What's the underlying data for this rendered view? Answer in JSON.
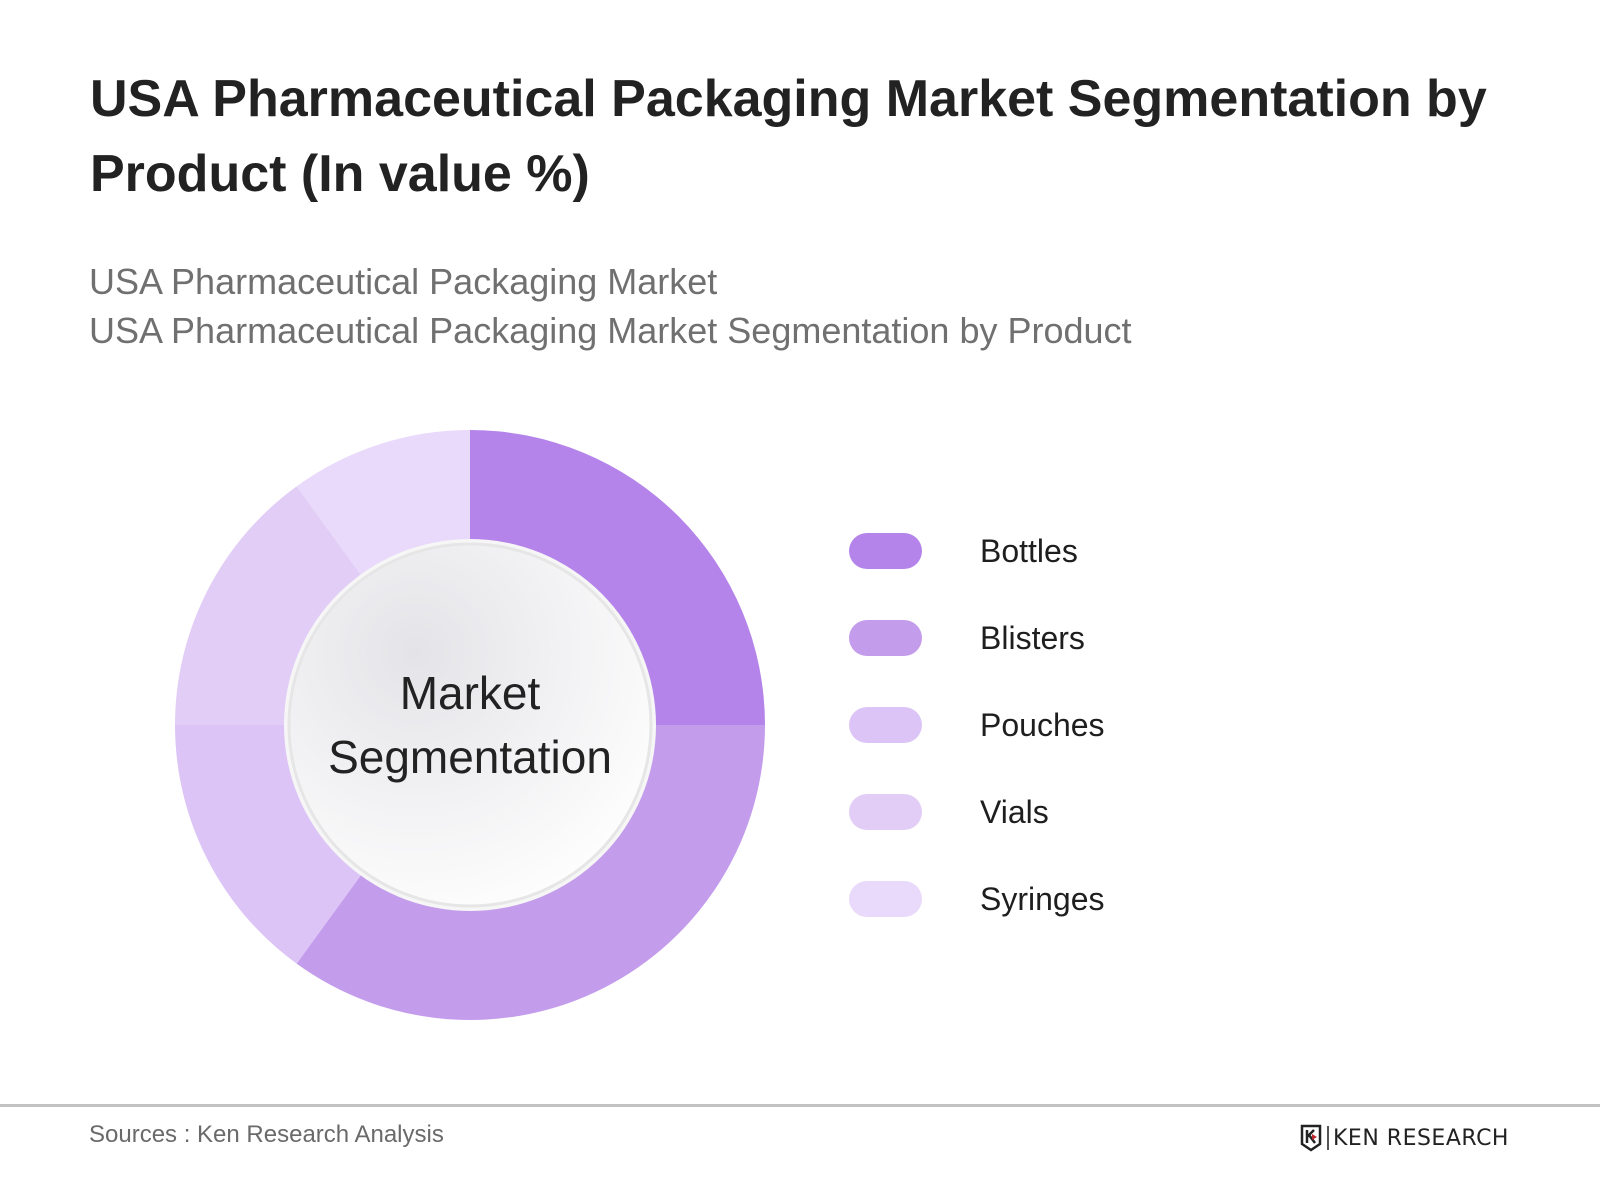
{
  "title": "USA Pharmaceutical Packaging Market Segmentation by Product (In value %)",
  "subtitle": {
    "line1": "USA Pharmaceutical Packaging Market",
    "line2": "USA Pharmaceutical Packaging Market Segmentation by Product"
  },
  "center_label": {
    "line1": "Market",
    "line2": "Segmentation"
  },
  "legend": [
    {
      "label": "Bottles",
      "color": "#b484ea"
    },
    {
      "label": "Blisters",
      "color": "#c49cec"
    },
    {
      "label": "Pouches",
      "color": "#dcc4f6"
    },
    {
      "label": "Vials",
      "color": "#e2cdf6"
    },
    {
      "label": "Syringes",
      "color": "#e9d9fa"
    }
  ],
  "footer": {
    "source": "Sources : Ken Research Analysis",
    "brand": "KEN RESEARCH"
  },
  "chart_data": {
    "type": "pie",
    "variant": "donut",
    "title": "USA Pharmaceutical Packaging Market Segmentation by Product (In value %)",
    "subtitle": "USA Pharmaceutical Packaging Market Segmentation by Product",
    "center_text": "Market Segmentation",
    "categories": [
      "Bottles",
      "Blisters",
      "Pouches",
      "Vials",
      "Syringes"
    ],
    "values": [
      25,
      35,
      15,
      15,
      10
    ],
    "colors": [
      "#b484ea",
      "#c49cec",
      "#dcc4f6",
      "#e2cdf6",
      "#e9d9fa"
    ],
    "unit": "%",
    "start_angle": "12 o'clock, clockwise",
    "legend_position": "right",
    "data_labels": false
  }
}
